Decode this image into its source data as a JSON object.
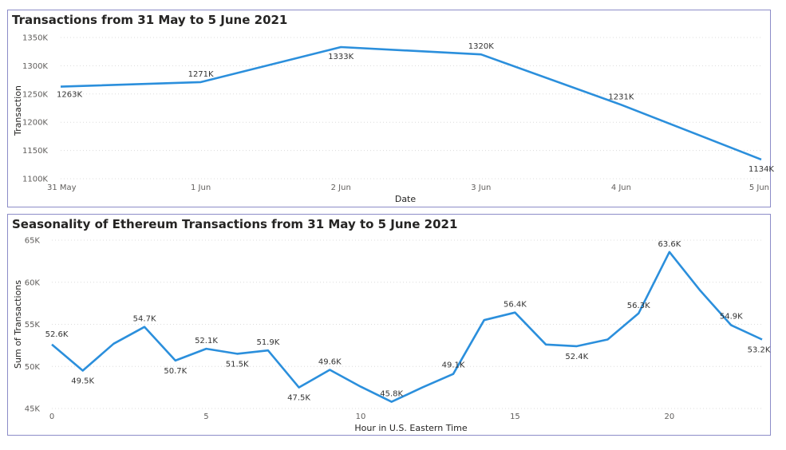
{
  "chart_data": [
    {
      "type": "line",
      "title": "Transactions from 31 May to 5 June 2021",
      "xlabel": "Date",
      "ylabel": "Transaction",
      "categories": [
        "31 May",
        "1 Jun",
        "2 Jun",
        "3 Jun",
        "4 Jun",
        "5 Jun"
      ],
      "values": [
        1263,
        1271,
        1333,
        1320,
        1231,
        1134
      ],
      "data_labels": [
        "1263K",
        "1271K",
        "1333K",
        "1320K",
        "1231K",
        "1134K"
      ],
      "ylim": [
        1100,
        1350
      ],
      "y_ticks": [
        1100,
        1150,
        1200,
        1250,
        1300,
        1350
      ],
      "y_tick_labels": [
        "1100K",
        "1150K",
        "1200K",
        "1250K",
        "1300K",
        "1350K"
      ],
      "grid": true,
      "color": "#2b8fdc"
    },
    {
      "type": "line",
      "title": "Seasonality of Ethereum Transactions from 31 May to 5 June 2021",
      "xlabel": "Hour in U.S. Eastern Time",
      "ylabel": "Sum of Transactions",
      "x": [
        0,
        1,
        2,
        3,
        4,
        5,
        6,
        7,
        8,
        9,
        10,
        11,
        12,
        13,
        14,
        15,
        16,
        17,
        18,
        19,
        20,
        21,
        22,
        23
      ],
      "values": [
        52.6,
        49.5,
        52.7,
        54.7,
        50.7,
        52.1,
        51.5,
        51.9,
        47.5,
        49.6,
        47.6,
        45.8,
        47.5,
        49.1,
        55.5,
        56.4,
        52.6,
        52.4,
        53.2,
        56.3,
        63.6,
        59.0,
        54.9,
        53.2
      ],
      "data_labels": [
        {
          "x": 0,
          "text": "52.6K"
        },
        {
          "x": 1,
          "text": "49.5K"
        },
        {
          "x": 3,
          "text": "54.7K"
        },
        {
          "x": 4,
          "text": "50.7K"
        },
        {
          "x": 5,
          "text": "52.1K"
        },
        {
          "x": 6,
          "text": "51.5K"
        },
        {
          "x": 7,
          "text": "51.9K"
        },
        {
          "x": 8,
          "text": "47.5K"
        },
        {
          "x": 9,
          "text": "49.6K"
        },
        {
          "x": 11,
          "text": "45.8K"
        },
        {
          "x": 13,
          "text": "49.1K"
        },
        {
          "x": 15,
          "text": "56.4K"
        },
        {
          "x": 17,
          "text": "52.4K"
        },
        {
          "x": 19,
          "text": "56.3K"
        },
        {
          "x": 20,
          "text": "63.6K"
        },
        {
          "x": 22,
          "text": "54.9K"
        },
        {
          "x": 23,
          "text": "53.2K"
        }
      ],
      "xlim": [
        0,
        23
      ],
      "x_ticks": [
        0,
        5,
        10,
        15,
        20
      ],
      "ylim": [
        45,
        65
      ],
      "y_ticks": [
        45,
        50,
        55,
        60,
        65
      ],
      "y_tick_labels": [
        "45K",
        "50K",
        "55K",
        "60K",
        "65K"
      ],
      "grid": true,
      "color": "#2b8fdc"
    }
  ]
}
